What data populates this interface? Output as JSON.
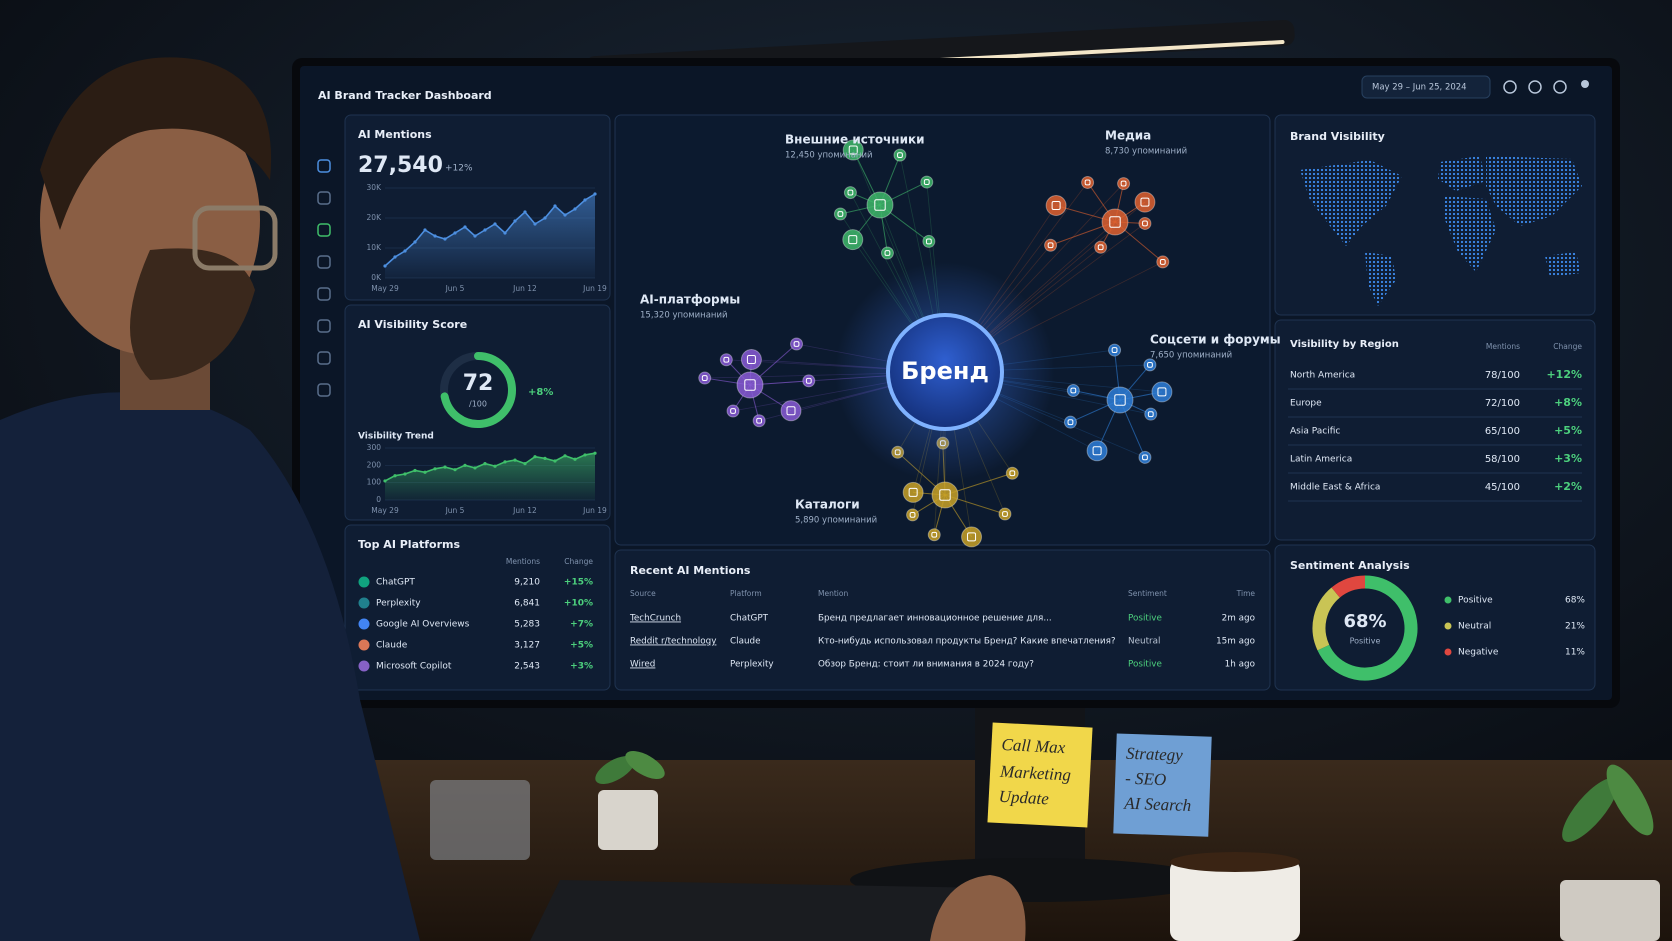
{
  "header": {
    "title": "AI Brand Tracker Dashboard",
    "date_range": "May 29 – Jun 25, 2024"
  },
  "mentions": {
    "title": "AI Mentions",
    "total": "27,540",
    "change": "+12%",
    "chart": {
      "type": "area",
      "color": "#4d8fe0",
      "categories": [
        "May 29",
        null,
        null,
        null,
        null,
        null,
        null,
        "Jun 5",
        null,
        null,
        null,
        null,
        null,
        null,
        "Jun 12",
        null,
        null,
        null,
        null,
        null,
        null,
        "Jun 19"
      ],
      "values": [
        4000,
        7000,
        9000,
        12000,
        16000,
        14000,
        13000,
        15000,
        17000,
        14000,
        16000,
        18000,
        15000,
        19000,
        22000,
        18000,
        20000,
        24000,
        21000,
        23000,
        26000,
        28000
      ],
      "ylim": [
        0,
        30000
      ],
      "yticks": [
        {
          "value": 0,
          "label": "0K"
        },
        {
          "value": 10000,
          "label": "10K"
        },
        {
          "value": 20000,
          "label": "20K"
        },
        {
          "value": 30000,
          "label": "30K"
        }
      ]
    }
  },
  "visibility_score": {
    "title": "AI Visibility Score",
    "score": 72,
    "max": {
      "value": 100,
      "label": "/100"
    },
    "change": "+8%"
  },
  "trend": {
    "title": "Visibility Trend",
    "type": "area",
    "color": "#3fbf6a",
    "categories": [
      "May 29",
      null,
      null,
      null,
      null,
      null,
      null,
      "Jun 5",
      null,
      null,
      null,
      null,
      null,
      null,
      "Jun 12",
      null,
      null,
      null,
      null,
      null,
      null,
      "Jun 19"
    ],
    "values": [
      110,
      140,
      150,
      170,
      160,
      180,
      190,
      175,
      200,
      185,
      210,
      195,
      220,
      230,
      210,
      250,
      240,
      225,
      255,
      235,
      260,
      270
    ],
    "ylim": [
      0,
      300
    ],
    "yticks": [
      0,
      100,
      200,
      300
    ]
  },
  "platforms": {
    "title": "Top AI Platforms",
    "columns": [
      "Mentions",
      "Change"
    ],
    "rows": [
      {
        "name": "ChatGPT",
        "mentions": "9,210",
        "change": "+15%",
        "color": "#10a37f"
      },
      {
        "name": "Perplexity",
        "mentions": "6,841",
        "change": "+10%",
        "color": "#20808d"
      },
      {
        "name": "Google AI Overviews",
        "mentions": "5,283",
        "change": "+7%",
        "color": "#4285f4"
      },
      {
        "name": "Claude",
        "mentions": "3,127",
        "change": "+5%",
        "color": "#d97757"
      },
      {
        "name": "Microsoft Copilot",
        "mentions": "2,543",
        "change": "+3%",
        "color": "#8661c5"
      }
    ]
  },
  "network": {
    "center": "Бренд",
    "clusters": [
      {
        "name": "Внешние источники",
        "count": "12,450 упоминаний",
        "color": "#3fb86a"
      },
      {
        "name": "Медиа",
        "count": "8,730 упоминаний",
        "color": "#e0612f"
      },
      {
        "name": "AI-платформы",
        "count": "15,320 упоминаний",
        "color": "#8a5cd6"
      },
      {
        "name": "Соцсети и форумы",
        "count": "7,650 упоминаний",
        "color": "#2f7fd8"
      },
      {
        "name": "Каталоги",
        "count": "5,890 упоминаний",
        "color": "#c9a227"
      }
    ]
  },
  "map": {
    "title": "Brand Visibility"
  },
  "regions": {
    "title": "Visibility by Region",
    "columns": [
      "Mentions",
      "Change"
    ],
    "rows": [
      [
        "North America",
        "78/100",
        "+12%"
      ],
      [
        "Europe",
        "72/100",
        "+8%"
      ],
      [
        "Asia Pacific",
        "65/100",
        "+5%"
      ],
      [
        "Latin America",
        "58/100",
        "+3%"
      ],
      [
        "Middle East & Africa",
        "45/100",
        "+2%"
      ]
    ]
  },
  "recent": {
    "title": "Recent AI Mentions",
    "columns": [
      "Source",
      "Platform",
      "Mention",
      "Sentiment",
      "Time"
    ],
    "rows": [
      {
        "cells": [
          "TechCrunch",
          "ChatGPT",
          "Бренд предлагает инновационное решение для...",
          "Positive",
          "2m ago"
        ],
        "color": "#4cd07d"
      },
      {
        "cells": [
          "Reddit r/technology",
          "Claude",
          "Кто-нибудь использовал продукты Бренд? Какие впечатления?",
          "Neutral",
          "15m ago"
        ],
        "color": "#b8c3d3"
      },
      {
        "cells": [
          "Wired",
          "Perplexity",
          "Обзор Бренд: стоит ли внимания в 2024 году?",
          "Positive",
          "1h ago"
        ],
        "color": "#4cd07d"
      }
    ]
  },
  "sentiment": {
    "title": "Sentiment Analysis",
    "center_label": "Positive",
    "items": [
      {
        "name": "Positive",
        "value": 68,
        "label": "68%",
        "color": "#3fbf6a"
      },
      {
        "name": "Neutral",
        "value": 21,
        "label": "21%",
        "color": "#c9c455"
      },
      {
        "name": "Negative",
        "value": 11,
        "label": "11%",
        "color": "#e0473f"
      }
    ]
  },
  "notes": [
    [
      "Call Max",
      "Marketing",
      "Update"
    ],
    [
      "Strategy",
      "- SEO",
      "AI Search"
    ]
  ]
}
